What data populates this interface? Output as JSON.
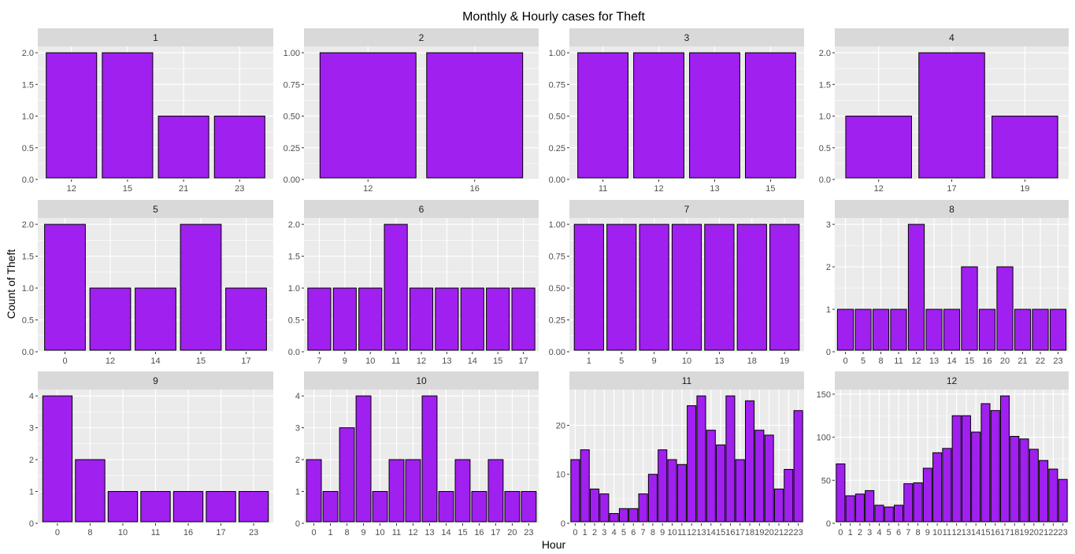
{
  "title": "Monthly & Hourly cases for Theft",
  "xlabel": "Hour",
  "ylabel": "Count of Theft",
  "colors": {
    "bar_fill": "#A020F0",
    "bar_stroke": "#000000",
    "panel_bg": "#EBEBEB",
    "strip_bg": "#D9D9D9",
    "grid": "#FFFFFF"
  },
  "chart_data": {
    "type": "bar",
    "facet": "month",
    "title": "Monthly & Hourly cases for Theft",
    "xlabel": "Hour",
    "ylabel": "Count of Theft",
    "grid": true,
    "panels": [
      {
        "label": "1",
        "categories": [
          "12",
          "15",
          "21",
          "23"
        ],
        "values": [
          2,
          2,
          1,
          1
        ],
        "ylim": [
          0,
          2.1
        ],
        "yticks": [
          0,
          0.5,
          1,
          1.5,
          2
        ],
        "ytick_labels": [
          "0.0",
          "0.5",
          "1.0",
          "1.5",
          "2.0"
        ]
      },
      {
        "label": "2",
        "categories": [
          "12",
          "16"
        ],
        "values": [
          1,
          1
        ],
        "ylim": [
          0,
          1.05
        ],
        "yticks": [
          0,
          0.25,
          0.5,
          0.75,
          1
        ],
        "ytick_labels": [
          "0.00",
          "0.25",
          "0.50",
          "0.75",
          "1.00"
        ]
      },
      {
        "label": "3",
        "categories": [
          "11",
          "12",
          "13",
          "15"
        ],
        "values": [
          1,
          1,
          1,
          1
        ],
        "ylim": [
          0,
          1.05
        ],
        "yticks": [
          0,
          0.25,
          0.5,
          0.75,
          1
        ],
        "ytick_labels": [
          "0.00",
          "0.25",
          "0.50",
          "0.75",
          "1.00"
        ]
      },
      {
        "label": "4",
        "categories": [
          "12",
          "17",
          "19"
        ],
        "values": [
          1,
          2,
          1
        ],
        "ylim": [
          0,
          2.1
        ],
        "yticks": [
          0,
          0.5,
          1,
          1.5,
          2
        ],
        "ytick_labels": [
          "0.0",
          "0.5",
          "1.0",
          "1.5",
          "2.0"
        ]
      },
      {
        "label": "5",
        "categories": [
          "0",
          "12",
          "14",
          "15",
          "17"
        ],
        "values": [
          2,
          1,
          1,
          2,
          1
        ],
        "ylim": [
          0,
          2.1
        ],
        "yticks": [
          0,
          0.5,
          1,
          1.5,
          2
        ],
        "ytick_labels": [
          "0.0",
          "0.5",
          "1.0",
          "1.5",
          "2.0"
        ]
      },
      {
        "label": "6",
        "categories": [
          "7",
          "9",
          "10",
          "11",
          "12",
          "13",
          "14",
          "15",
          "17"
        ],
        "values": [
          1,
          1,
          1,
          2,
          1,
          1,
          1,
          1,
          1
        ],
        "ylim": [
          0,
          2.1
        ],
        "yticks": [
          0,
          0.5,
          1,
          1.5,
          2
        ],
        "ytick_labels": [
          "0.0",
          "0.5",
          "1.0",
          "1.5",
          "2.0"
        ]
      },
      {
        "label": "7",
        "categories": [
          "1",
          "5",
          "9",
          "10",
          "13",
          "18",
          "19"
        ],
        "values": [
          1,
          1,
          1,
          1,
          1,
          1,
          1
        ],
        "ylim": [
          0,
          1.05
        ],
        "yticks": [
          0,
          0.25,
          0.5,
          0.75,
          1
        ],
        "ytick_labels": [
          "0.00",
          "0.25",
          "0.50",
          "0.75",
          "1.00"
        ]
      },
      {
        "label": "8",
        "categories": [
          "0",
          "5",
          "8",
          "11",
          "12",
          "13",
          "14",
          "15",
          "16",
          "20",
          "21",
          "22",
          "23"
        ],
        "values": [
          1,
          1,
          1,
          1,
          3,
          1,
          1,
          2,
          1,
          2,
          1,
          1,
          1
        ],
        "ylim": [
          0,
          3.15
        ],
        "yticks": [
          0,
          1,
          2,
          3
        ],
        "ytick_labels": [
          "0",
          "1",
          "2",
          "3"
        ]
      },
      {
        "label": "9",
        "categories": [
          "0",
          "8",
          "10",
          "11",
          "16",
          "17",
          "23"
        ],
        "values": [
          4,
          2,
          1,
          1,
          1,
          1,
          1
        ],
        "ylim": [
          0,
          4.2
        ],
        "yticks": [
          0,
          1,
          2,
          3,
          4
        ],
        "ytick_labels": [
          "0",
          "1",
          "2",
          "3",
          "4"
        ]
      },
      {
        "label": "10",
        "categories": [
          "0",
          "1",
          "8",
          "9",
          "10",
          "11",
          "12",
          "13",
          "14",
          "15",
          "16",
          "17",
          "20",
          "23"
        ],
        "values": [
          2,
          1,
          3,
          4,
          1,
          2,
          2,
          4,
          1,
          2,
          1,
          2,
          1,
          1
        ],
        "ylim": [
          0,
          4.2
        ],
        "yticks": [
          0,
          1,
          2,
          3,
          4
        ],
        "ytick_labels": [
          "0",
          "1",
          "2",
          "3",
          "4"
        ]
      },
      {
        "label": "11",
        "categories": [
          "0",
          "1",
          "2",
          "3",
          "4",
          "5",
          "6",
          "7",
          "8",
          "9",
          "10",
          "11",
          "12",
          "13",
          "14",
          "15",
          "16",
          "17",
          "18",
          "19",
          "20",
          "21",
          "22",
          "23"
        ],
        "values": [
          13,
          15,
          7,
          6,
          2,
          3,
          3,
          6,
          10,
          15,
          13,
          12,
          24,
          26,
          19,
          16,
          26,
          13,
          25,
          19,
          18,
          7,
          11,
          23
        ],
        "ylim": [
          0,
          27.3
        ],
        "yticks": [
          0,
          10,
          20
        ],
        "ytick_labels": [
          "0",
          "10",
          "20"
        ]
      },
      {
        "label": "12",
        "categories": [
          "0",
          "1",
          "2",
          "3",
          "4",
          "5",
          "6",
          "7",
          "8",
          "9",
          "10",
          "11",
          "12",
          "13",
          "14",
          "15",
          "16",
          "17",
          "18",
          "19",
          "20",
          "21",
          "22",
          "23"
        ],
        "values": [
          69,
          32,
          34,
          38,
          21,
          19,
          21,
          46,
          47,
          64,
          82,
          87,
          125,
          125,
          106,
          139,
          131,
          148,
          101,
          98,
          86,
          73,
          63,
          51
        ],
        "ylim": [
          0,
          155.4
        ],
        "yticks": [
          0,
          50,
          100,
          150
        ],
        "ytick_labels": [
          "0",
          "50",
          "100",
          "150"
        ]
      }
    ]
  }
}
